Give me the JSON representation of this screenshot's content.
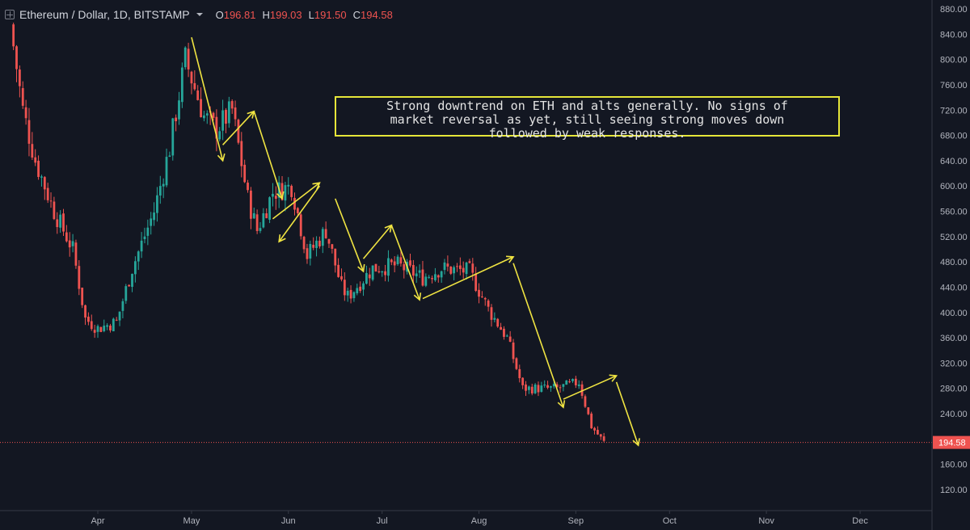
{
  "header": {
    "symbol": "Ethereum / Dollar, 1D, BITSTAMP",
    "ohlc": [
      {
        "label": "O",
        "value": "196.81"
      },
      {
        "label": "H",
        "value": "199.03"
      },
      {
        "label": "L",
        "value": "191.50"
      },
      {
        "label": "C",
        "value": "194.58"
      }
    ]
  },
  "annotation": {
    "text": "Strong downtrend on ETH and alts generally. No signs of\nmarket reversal as yet, still seeing strong moves down\nfollowed by weak responses."
  },
  "colors": {
    "background": "#131722",
    "up": "#26a69a",
    "down": "#ef5350",
    "arrow": "#f0e442",
    "price_label": "#ef5350"
  },
  "chart_data": {
    "type": "candlestick",
    "ylim": [
      100,
      880
    ],
    "y_ticks": [
      "880.00",
      "840.00",
      "800.00",
      "760.00",
      "720.00",
      "680.00",
      "640.00",
      "600.00",
      "560.00",
      "520.00",
      "480.00",
      "440.00",
      "400.00",
      "360.00",
      "320.00",
      "280.00",
      "240.00",
      "200.00",
      "160.00",
      "120.00"
    ],
    "x_ticks": [
      {
        "label": "Apr",
        "day": 0
      },
      {
        "label": "May",
        "day": 30
      },
      {
        "label": "Jun",
        "day": 61
      },
      {
        "label": "Jul",
        "day": 91
      },
      {
        "label": "Aug",
        "day": 122
      },
      {
        "label": "Sep",
        "day": 153
      },
      {
        "label": "Oct",
        "day": 183
      },
      {
        "label": "Nov",
        "day": 214
      },
      {
        "label": "Dec",
        "day": 244
      }
    ],
    "last_price": "194.58",
    "key_points": [
      {
        "day": -28,
        "price": 855
      },
      {
        "day": -24,
        "price": 720
      },
      {
        "day": -20,
        "price": 640
      },
      {
        "day": -14,
        "price": 560
      },
      {
        "day": -8,
        "price": 500
      },
      {
        "day": -4,
        "price": 390
      },
      {
        "day": 0,
        "price": 375
      },
      {
        "day": 6,
        "price": 385
      },
      {
        "day": 11,
        "price": 470
      },
      {
        "day": 18,
        "price": 560
      },
      {
        "day": 23,
        "price": 660
      },
      {
        "day": 28,
        "price": 800
      },
      {
        "day": 34,
        "price": 710
      },
      {
        "day": 38,
        "price": 690
      },
      {
        "day": 43,
        "price": 720
      },
      {
        "day": 48,
        "price": 580
      },
      {
        "day": 51,
        "price": 530
      },
      {
        "day": 56,
        "price": 590
      },
      {
        "day": 62,
        "price": 600
      },
      {
        "day": 67,
        "price": 490
      },
      {
        "day": 73,
        "price": 530
      },
      {
        "day": 78,
        "price": 440
      },
      {
        "day": 80,
        "price": 425
      },
      {
        "day": 88,
        "price": 470
      },
      {
        "day": 96,
        "price": 475
      },
      {
        "day": 104,
        "price": 455
      },
      {
        "day": 110,
        "price": 470
      },
      {
        "day": 119,
        "price": 465
      },
      {
        "day": 125,
        "price": 405
      },
      {
        "day": 131,
        "price": 360
      },
      {
        "day": 136,
        "price": 280
      },
      {
        "day": 141,
        "price": 280
      },
      {
        "day": 147,
        "price": 280
      },
      {
        "day": 154,
        "price": 290
      },
      {
        "day": 158,
        "price": 220
      },
      {
        "day": 162,
        "price": 195
      }
    ],
    "arrows": [
      {
        "from": [
          30,
          835
        ],
        "to": [
          40,
          640
        ]
      },
      {
        "from": [
          40,
          665
        ],
        "to": [
          50,
          718
        ]
      },
      {
        "from": [
          50,
          718
        ],
        "to": [
          59,
          580
        ]
      },
      {
        "from": [
          56,
          548
        ],
        "to": [
          71,
          605
        ]
      },
      {
        "from": [
          71,
          600
        ],
        "to": [
          58,
          512
        ]
      },
      {
        "from": [
          76,
          580
        ],
        "to": [
          85,
          465
        ]
      },
      {
        "from": [
          85,
          485
        ],
        "to": [
          94,
          538
        ]
      },
      {
        "from": [
          94,
          538
        ],
        "to": [
          103,
          420
        ]
      },
      {
        "from": [
          104,
          422
        ],
        "to": [
          133,
          488
        ]
      },
      {
        "from": [
          133,
          478
        ],
        "to": [
          149,
          250
        ]
      },
      {
        "from": [
          149,
          263
        ],
        "to": [
          166,
          300
        ]
      },
      {
        "from": [
          166,
          290
        ],
        "to": [
          173,
          190
        ]
      }
    ]
  }
}
